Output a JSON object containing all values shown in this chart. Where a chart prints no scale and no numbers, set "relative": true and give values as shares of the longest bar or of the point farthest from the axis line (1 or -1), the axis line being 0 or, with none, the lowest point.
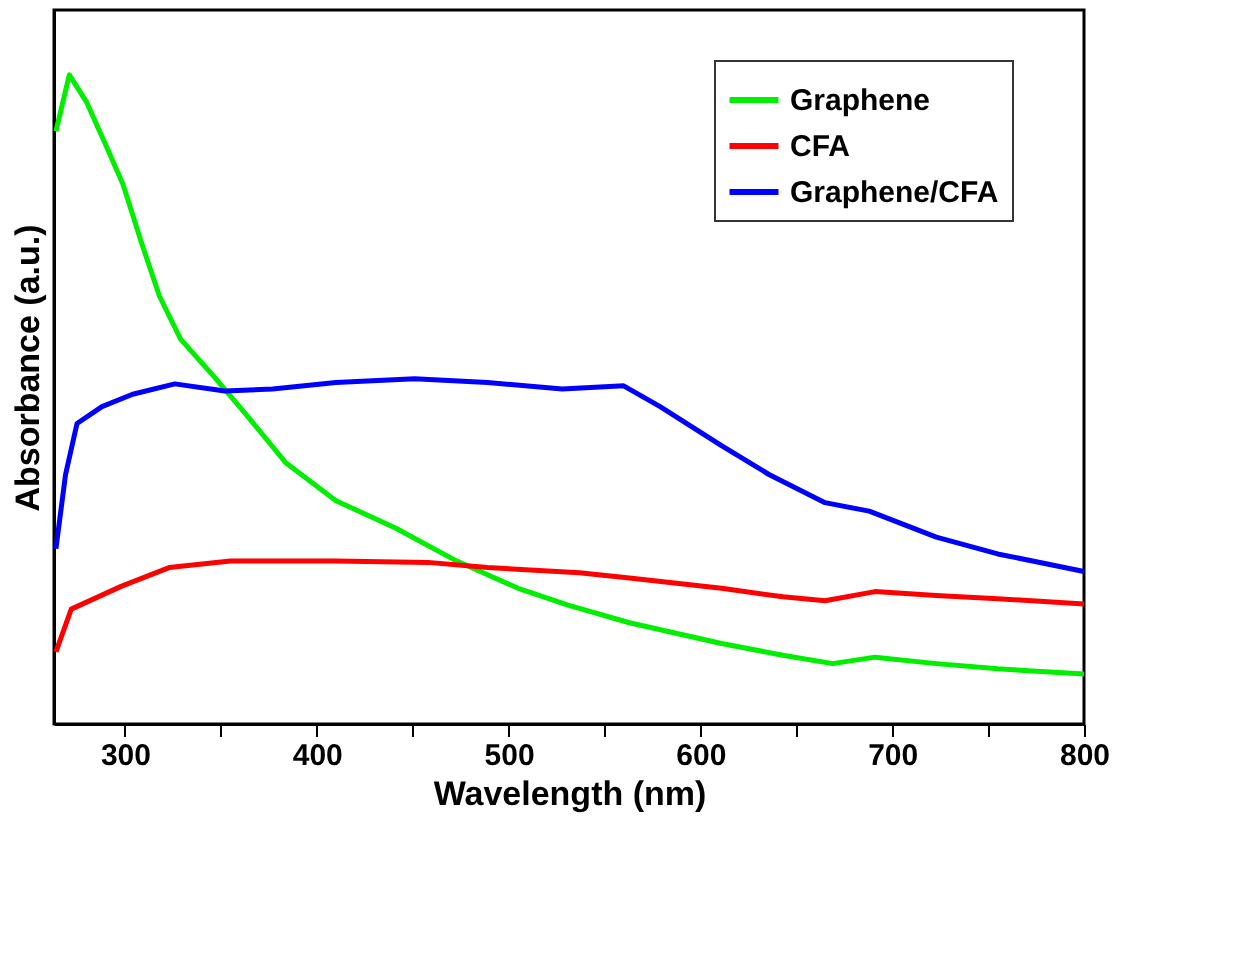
{
  "chart_data": {
    "type": "line",
    "relative": true,
    "xlabel": "Wavelength (nm)",
    "ylabel": "Absorbance (a.u.)",
    "xlim": [
      263,
      800
    ],
    "xticks": [
      300,
      {
        "value": 350,
        "label": null
      },
      400,
      {
        "value": 450,
        "label": null
      },
      500,
      {
        "value": 550,
        "label": null
      },
      600,
      {
        "value": 650,
        "label": null
      },
      700,
      {
        "value": 750,
        "label": null
      },
      800
    ],
    "grid": false,
    "legend": "top right",
    "marker": "none",
    "line_style": "solid",
    "series": [
      {
        "name": "Graphene",
        "color": "#00ee00",
        "x": [
          264,
          271,
          280,
          290,
          299,
          309,
          318,
          329,
          345,
          362,
          384,
          410,
          441,
          473,
          505,
          531,
          563,
          611,
          643,
          669,
          691,
          723,
          755,
          800
        ],
        "values": [
          0.913,
          1.0,
          0.958,
          0.892,
          0.831,
          0.738,
          0.659,
          0.593,
          0.54,
          0.481,
          0.402,
          0.344,
          0.302,
          0.251,
          0.209,
          0.183,
          0.156,
          0.124,
          0.106,
          0.093,
          0.103,
          0.093,
          0.085,
          0.077
        ]
      },
      {
        "name": "CFA",
        "color": "#ff0000",
        "x": [
          264,
          272,
          298,
          323,
          355,
          410,
          458,
          489,
          537,
          563,
          611,
          643,
          665,
          691,
          723,
          755,
          800
        ],
        "values": [
          0.111,
          0.177,
          0.212,
          0.241,
          0.251,
          0.251,
          0.249,
          0.241,
          0.233,
          0.225,
          0.209,
          0.196,
          0.19,
          0.204,
          0.198,
          0.193,
          0.185
        ]
      },
      {
        "name": "Graphene/CFA",
        "color": "#0000ff",
        "x": [
          264,
          269,
          275,
          288,
          304,
          326,
          352,
          377,
          410,
          451,
          489,
          528,
          560,
          579,
          611,
          636,
          665,
          688,
          723,
          755,
          800
        ],
        "values": [
          0.27,
          0.384,
          0.463,
          0.489,
          0.508,
          0.524,
          0.513,
          0.516,
          0.526,
          0.532,
          0.526,
          0.516,
          0.521,
          0.489,
          0.429,
          0.384,
          0.341,
          0.328,
          0.288,
          0.262,
          0.235
        ]
      }
    ]
  }
}
